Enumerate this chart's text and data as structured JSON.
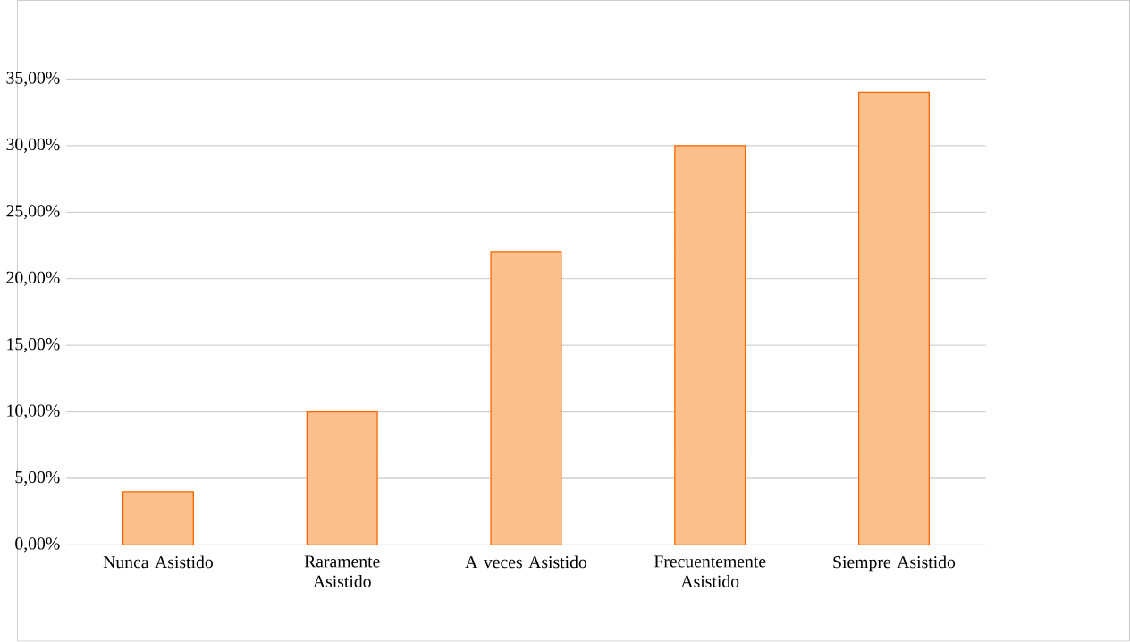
{
  "chart_data": {
    "type": "bar",
    "categories": [
      "Nunca Asistido",
      "Raramente Asistido",
      "A veces Asistido",
      "Frecuentemente Asistido",
      "Siempre Asistido"
    ],
    "values": [
      4,
      10,
      22,
      30,
      34
    ],
    "color": "#fbc08c",
    "ylim": [
      0,
      35
    ],
    "yticks": [
      {
        "value": 0,
        "label": "0,00%"
      },
      {
        "value": 5,
        "label": "5,00%"
      },
      {
        "value": 10,
        "label": "10,00%"
      },
      {
        "value": 15,
        "label": "15,00%"
      },
      {
        "value": 20,
        "label": "20,00%"
      },
      {
        "value": 25,
        "label": "25,00%"
      },
      {
        "value": 30,
        "label": "30,00%"
      },
      {
        "value": 35,
        "label": "35,00%"
      }
    ],
    "grid": "y"
  }
}
